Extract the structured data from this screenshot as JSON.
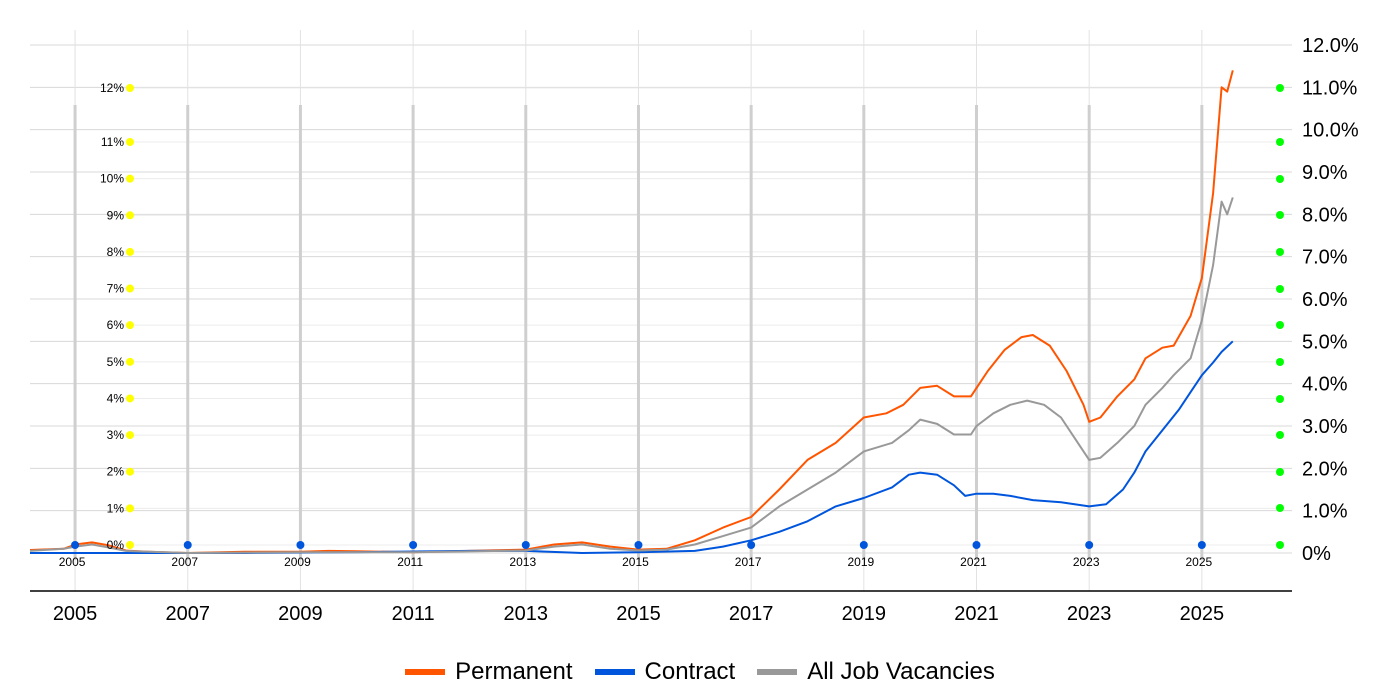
{
  "chart_data": {
    "type": "line",
    "title": "",
    "xlabel": "",
    "ylabel": "",
    "x_range": [
      2004.2,
      2026.6
    ],
    "x_ticks": [
      "2005",
      "2007",
      "2009",
      "2011",
      "2013",
      "2015",
      "2017",
      "2019",
      "2021",
      "2023",
      "2025"
    ],
    "y_right": {
      "range": [
        0,
        12
      ],
      "ticks": [
        "0%",
        "1.0%",
        "2.0%",
        "3.0%",
        "4.0%",
        "5.0%",
        "6.0%",
        "7.0%",
        "8.0%",
        "9.0%",
        "10.0%",
        "11.0%",
        "12.0%"
      ]
    },
    "y_left_inner": {
      "ticks": [
        "0%",
        "1%",
        "2%",
        "3%",
        "4%",
        "5%",
        "6%",
        "7%",
        "8%",
        "9%",
        "10%",
        "11%",
        "12%"
      ]
    },
    "grid": true,
    "legend_position": "bottom",
    "series": [
      {
        "name": "Permanent",
        "color": "#ff5500",
        "points": [
          [
            2004.2,
            0.07
          ],
          [
            2004.8,
            0.1
          ],
          [
            2005.0,
            0.2
          ],
          [
            2005.3,
            0.25
          ],
          [
            2005.6,
            0.18
          ],
          [
            2005.9,
            0.06
          ],
          [
            2006.3,
            0.03
          ],
          [
            2007.0,
            0.0
          ],
          [
            2008.0,
            0.03
          ],
          [
            2009.0,
            0.03
          ],
          [
            2009.5,
            0.05
          ],
          [
            2010.0,
            0.04
          ],
          [
            2011.0,
            0.02
          ],
          [
            2012.0,
            0.05
          ],
          [
            2013.0,
            0.08
          ],
          [
            2013.5,
            0.2
          ],
          [
            2014.0,
            0.25
          ],
          [
            2014.5,
            0.15
          ],
          [
            2015.0,
            0.08
          ],
          [
            2015.5,
            0.1
          ],
          [
            2016.0,
            0.3
          ],
          [
            2016.5,
            0.6
          ],
          [
            2017.0,
            0.85
          ],
          [
            2017.5,
            1.5
          ],
          [
            2018.0,
            2.2
          ],
          [
            2018.5,
            2.6
          ],
          [
            2019.0,
            3.2
          ],
          [
            2019.4,
            3.3
          ],
          [
            2019.7,
            3.5
          ],
          [
            2020.0,
            3.9
          ],
          [
            2020.3,
            3.95
          ],
          [
            2020.6,
            3.7
          ],
          [
            2020.9,
            3.7
          ],
          [
            2021.2,
            4.3
          ],
          [
            2021.5,
            4.8
          ],
          [
            2021.8,
            5.1
          ],
          [
            2022.0,
            5.15
          ],
          [
            2022.3,
            4.9
          ],
          [
            2022.6,
            4.3
          ],
          [
            2022.9,
            3.5
          ],
          [
            2023.0,
            3.1
          ],
          [
            2023.2,
            3.2
          ],
          [
            2023.5,
            3.7
          ],
          [
            2023.8,
            4.1
          ],
          [
            2024.0,
            4.6
          ],
          [
            2024.3,
            4.85
          ],
          [
            2024.5,
            4.9
          ],
          [
            2024.8,
            5.6
          ],
          [
            2025.0,
            6.5
          ],
          [
            2025.2,
            8.5
          ],
          [
            2025.35,
            11.0
          ],
          [
            2025.45,
            10.9
          ],
          [
            2025.55,
            11.4
          ]
        ]
      },
      {
        "name": "Contract",
        "color": "#0055dd",
        "points": [
          [
            2004.2,
            0.0
          ],
          [
            2006.0,
            0.0
          ],
          [
            2008.0,
            0.0
          ],
          [
            2010.0,
            0.02
          ],
          [
            2012.0,
            0.05
          ],
          [
            2013.0,
            0.05
          ],
          [
            2014.0,
            0.0
          ],
          [
            2015.0,
            0.02
          ],
          [
            2016.0,
            0.05
          ],
          [
            2016.5,
            0.15
          ],
          [
            2017.0,
            0.3
          ],
          [
            2017.5,
            0.5
          ],
          [
            2018.0,
            0.75
          ],
          [
            2018.5,
            1.1
          ],
          [
            2019.0,
            1.3
          ],
          [
            2019.5,
            1.55
          ],
          [
            2019.8,
            1.85
          ],
          [
            2020.0,
            1.9
          ],
          [
            2020.3,
            1.85
          ],
          [
            2020.6,
            1.6
          ],
          [
            2020.8,
            1.35
          ],
          [
            2021.0,
            1.4
          ],
          [
            2021.3,
            1.4
          ],
          [
            2021.6,
            1.35
          ],
          [
            2022.0,
            1.25
          ],
          [
            2022.5,
            1.2
          ],
          [
            2023.0,
            1.1
          ],
          [
            2023.3,
            1.15
          ],
          [
            2023.6,
            1.5
          ],
          [
            2023.8,
            1.9
          ],
          [
            2024.0,
            2.4
          ],
          [
            2024.3,
            2.9
          ],
          [
            2024.6,
            3.4
          ],
          [
            2024.8,
            3.8
          ],
          [
            2025.0,
            4.2
          ],
          [
            2025.2,
            4.5
          ],
          [
            2025.35,
            4.75
          ],
          [
            2025.55,
            5.0
          ]
        ]
      },
      {
        "name": "All Job Vacancies",
        "color": "#999999",
        "points": [
          [
            2004.2,
            0.05
          ],
          [
            2004.8,
            0.1
          ],
          [
            2005.0,
            0.15
          ],
          [
            2005.3,
            0.2
          ],
          [
            2005.6,
            0.13
          ],
          [
            2005.9,
            0.05
          ],
          [
            2007.0,
            0.0
          ],
          [
            2009.0,
            0.02
          ],
          [
            2011.0,
            0.02
          ],
          [
            2013.0,
            0.06
          ],
          [
            2013.5,
            0.15
          ],
          [
            2014.0,
            0.2
          ],
          [
            2014.5,
            0.1
          ],
          [
            2015.0,
            0.06
          ],
          [
            2015.5,
            0.08
          ],
          [
            2016.0,
            0.2
          ],
          [
            2016.5,
            0.4
          ],
          [
            2017.0,
            0.6
          ],
          [
            2017.5,
            1.1
          ],
          [
            2018.0,
            1.5
          ],
          [
            2018.5,
            1.9
          ],
          [
            2019.0,
            2.4
          ],
          [
            2019.5,
            2.6
          ],
          [
            2019.8,
            2.9
          ],
          [
            2020.0,
            3.15
          ],
          [
            2020.3,
            3.05
          ],
          [
            2020.6,
            2.8
          ],
          [
            2020.9,
            2.8
          ],
          [
            2021.0,
            3.0
          ],
          [
            2021.3,
            3.3
          ],
          [
            2021.6,
            3.5
          ],
          [
            2021.9,
            3.6
          ],
          [
            2022.2,
            3.5
          ],
          [
            2022.5,
            3.2
          ],
          [
            2022.8,
            2.6
          ],
          [
            2023.0,
            2.2
          ],
          [
            2023.2,
            2.25
          ],
          [
            2023.5,
            2.6
          ],
          [
            2023.8,
            3.0
          ],
          [
            2024.0,
            3.5
          ],
          [
            2024.3,
            3.9
          ],
          [
            2024.5,
            4.2
          ],
          [
            2024.8,
            4.6
          ],
          [
            2025.0,
            5.5
          ],
          [
            2025.2,
            6.8
          ],
          [
            2025.35,
            8.3
          ],
          [
            2025.45,
            8.0
          ],
          [
            2025.55,
            8.4
          ]
        ]
      }
    ]
  }
}
